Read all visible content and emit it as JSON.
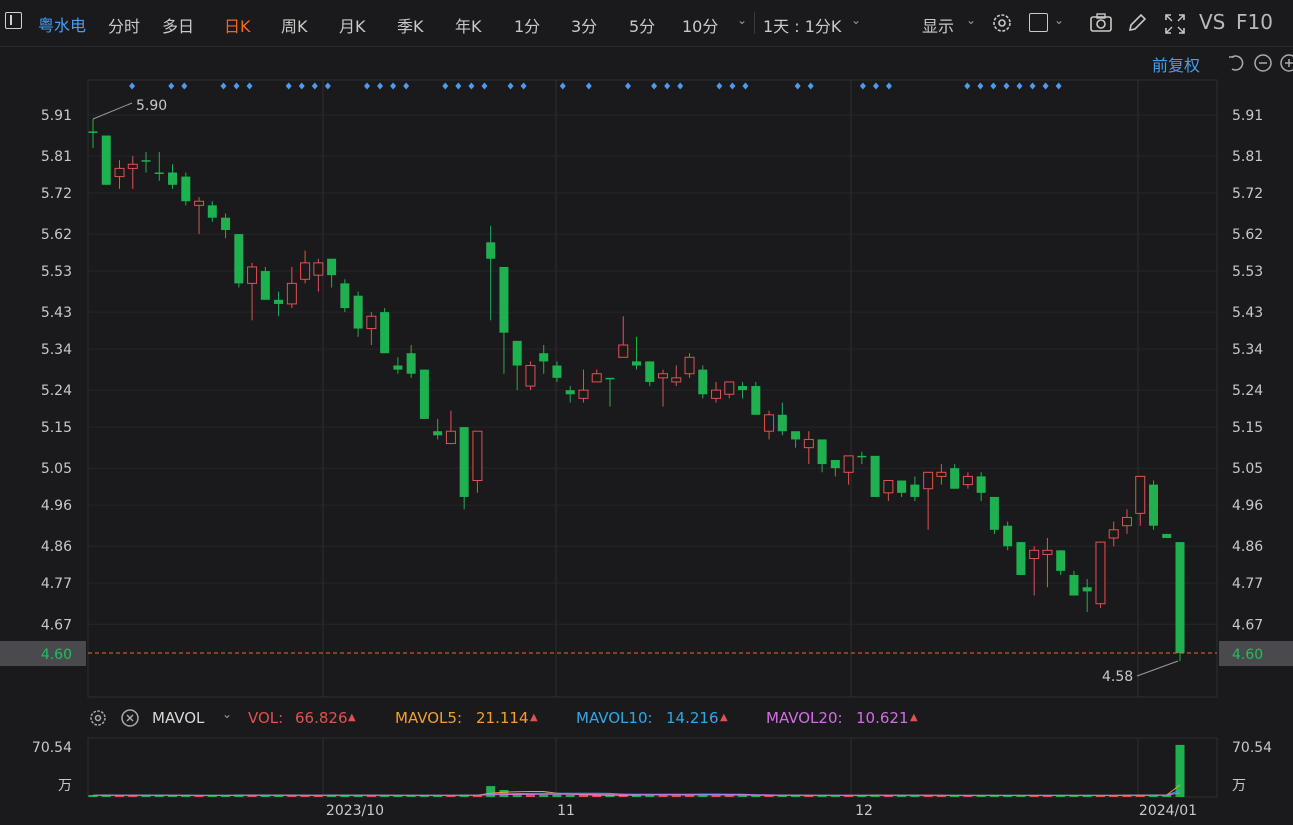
{
  "toolbar": {
    "stock_name": "粤水电",
    "periods": [
      "分时",
      "多日",
      "日K",
      "周K",
      "月K",
      "季K",
      "年K",
      "1分",
      "3分",
      "5分",
      "10分"
    ],
    "active_period": "日K",
    "range_label": "1天 : 1分K",
    "display_label": "显示",
    "vs_label": "VS",
    "f10_label": "F10"
  },
  "chart_header": {
    "adjust_label": "前复权"
  },
  "price_axis": {
    "ticks": [
      "5.91",
      "5.81",
      "5.72",
      "5.62",
      "5.53",
      "5.43",
      "5.34",
      "5.24",
      "5.15",
      "5.05",
      "4.96",
      "4.86",
      "4.77",
      "4.67"
    ],
    "current_price": "4.60",
    "max_label": "5.90",
    "min_label": "4.58"
  },
  "volume_panel": {
    "indicator": "MAVOL",
    "vol_label": "VOL:",
    "vol_value": "66.826",
    "mavol5_label": "MAVOL5:",
    "mavol5_value": "21.114",
    "mavol10_label": "MAVOL10:",
    "mavol10_value": "14.216",
    "mavol20_label": "MAVOL20:",
    "mavol20_value": "10.621",
    "axis_top": "70.54",
    "axis_unit": "万"
  },
  "x_axis": {
    "labels": [
      "2023/10",
      "11",
      "12",
      "2024/01"
    ]
  },
  "colors": {
    "up": "#e0524f",
    "down": "#1fb150",
    "accent": "#f06a20",
    "link": "#4a9cf0"
  },
  "chart_data": {
    "type": "candlestick",
    "ylim": [
      4.58,
      5.92
    ],
    "markers": [
      1,
      4,
      5,
      8,
      9,
      10,
      13,
      14,
      15,
      16,
      19,
      20,
      21,
      22,
      25,
      26,
      27,
      28,
      30,
      31,
      34,
      36,
      39,
      41,
      42,
      43,
      46,
      47,
      48,
      52,
      53,
      57,
      58,
      59,
      65,
      66,
      67,
      68,
      69,
      70,
      71,
      72
    ],
    "candles": [
      {
        "o": 5.87,
        "c": 5.87,
        "h": 5.9,
        "l": 5.83,
        "v": 2
      },
      {
        "o": 5.86,
        "c": 5.74,
        "h": 5.86,
        "l": 5.74,
        "v": 3
      },
      {
        "o": 5.76,
        "c": 5.78,
        "h": 5.8,
        "l": 5.73,
        "v": 2
      },
      {
        "o": 5.78,
        "c": 5.79,
        "h": 5.81,
        "l": 5.73,
        "v": 2
      },
      {
        "o": 5.8,
        "c": 5.8,
        "h": 5.82,
        "l": 5.77,
        "v": 2
      },
      {
        "o": 5.77,
        "c": 5.77,
        "h": 5.82,
        "l": 5.75,
        "v": 2
      },
      {
        "o": 5.77,
        "c": 5.74,
        "h": 5.79,
        "l": 5.73,
        "v": 2
      },
      {
        "o": 5.76,
        "c": 5.7,
        "h": 5.77,
        "l": 5.69,
        "v": 2
      },
      {
        "o": 5.69,
        "c": 5.7,
        "h": 5.71,
        "l": 5.62,
        "v": 2
      },
      {
        "o": 5.69,
        "c": 5.66,
        "h": 5.7,
        "l": 5.65,
        "v": 2
      },
      {
        "o": 5.66,
        "c": 5.63,
        "h": 5.67,
        "l": 5.61,
        "v": 2
      },
      {
        "o": 5.62,
        "c": 5.5,
        "h": 5.62,
        "l": 5.49,
        "v": 3
      },
      {
        "o": 5.5,
        "c": 5.54,
        "h": 5.55,
        "l": 5.41,
        "v": 3
      },
      {
        "o": 5.53,
        "c": 5.46,
        "h": 5.54,
        "l": 5.46,
        "v": 2
      },
      {
        "o": 5.46,
        "c": 5.45,
        "h": 5.48,
        "l": 5.42,
        "v": 2
      },
      {
        "o": 5.45,
        "c": 5.5,
        "h": 5.54,
        "l": 5.44,
        "v": 2
      },
      {
        "o": 5.51,
        "c": 5.55,
        "h": 5.58,
        "l": 5.5,
        "v": 2
      },
      {
        "o": 5.52,
        "c": 5.55,
        "h": 5.56,
        "l": 5.48,
        "v": 2
      },
      {
        "o": 5.56,
        "c": 5.52,
        "h": 5.56,
        "l": 5.49,
        "v": 3
      },
      {
        "o": 5.5,
        "c": 5.44,
        "h": 5.51,
        "l": 5.43,
        "v": 2
      },
      {
        "o": 5.47,
        "c": 5.39,
        "h": 5.48,
        "l": 5.37,
        "v": 2
      },
      {
        "o": 5.39,
        "c": 5.42,
        "h": 5.43,
        "l": 5.35,
        "v": 2
      },
      {
        "o": 5.43,
        "c": 5.33,
        "h": 5.44,
        "l": 5.33,
        "v": 2
      },
      {
        "o": 5.3,
        "c": 5.29,
        "h": 5.32,
        "l": 5.28,
        "v": 2
      },
      {
        "o": 5.33,
        "c": 5.28,
        "h": 5.35,
        "l": 5.27,
        "v": 2
      },
      {
        "o": 5.29,
        "c": 5.17,
        "h": 5.29,
        "l": 5.17,
        "v": 2
      },
      {
        "o": 5.14,
        "c": 5.13,
        "h": 5.17,
        "l": 5.12,
        "v": 2
      },
      {
        "o": 5.11,
        "c": 5.14,
        "h": 5.19,
        "l": 5.11,
        "v": 2
      },
      {
        "o": 5.15,
        "c": 4.98,
        "h": 5.15,
        "l": 4.95,
        "v": 3
      },
      {
        "o": 5.02,
        "c": 5.14,
        "h": 5.14,
        "l": 4.99,
        "v": 3
      },
      {
        "o": 5.6,
        "c": 5.56,
        "h": 5.64,
        "l": 5.41,
        "v": 14
      },
      {
        "o": 5.54,
        "c": 5.38,
        "h": 5.54,
        "l": 5.28,
        "v": 9
      },
      {
        "o": 5.36,
        "c": 5.3,
        "h": 5.36,
        "l": 5.24,
        "v": 5
      },
      {
        "o": 5.25,
        "c": 5.3,
        "h": 5.31,
        "l": 5.24,
        "v": 4
      },
      {
        "o": 5.33,
        "c": 5.31,
        "h": 5.35,
        "l": 5.28,
        "v": 3
      },
      {
        "o": 5.3,
        "c": 5.27,
        "h": 5.31,
        "l": 5.26,
        "v": 3
      },
      {
        "o": 5.24,
        "c": 5.23,
        "h": 5.25,
        "l": 5.21,
        "v": 2
      },
      {
        "o": 5.22,
        "c": 5.24,
        "h": 5.29,
        "l": 5.21,
        "v": 2
      },
      {
        "o": 5.26,
        "c": 5.28,
        "h": 5.29,
        "l": 5.26,
        "v": 2
      },
      {
        "o": 5.27,
        "c": 5.27,
        "h": 5.27,
        "l": 5.2,
        "v": 2
      },
      {
        "o": 5.32,
        "c": 5.35,
        "h": 5.42,
        "l": 5.32,
        "v": 3
      },
      {
        "o": 5.31,
        "c": 5.3,
        "h": 5.37,
        "l": 5.29,
        "v": 3
      },
      {
        "o": 5.31,
        "c": 5.26,
        "h": 5.31,
        "l": 5.25,
        "v": 3
      },
      {
        "o": 5.27,
        "c": 5.28,
        "h": 5.29,
        "l": 5.2,
        "v": 3
      },
      {
        "o": 5.26,
        "c": 5.27,
        "h": 5.3,
        "l": 5.25,
        "v": 2
      },
      {
        "o": 5.28,
        "c": 5.32,
        "h": 5.33,
        "l": 5.27,
        "v": 3
      },
      {
        "o": 5.29,
        "c": 5.23,
        "h": 5.3,
        "l": 5.22,
        "v": 3
      },
      {
        "o": 5.22,
        "c": 5.24,
        "h": 5.26,
        "l": 5.21,
        "v": 2
      },
      {
        "o": 5.23,
        "c": 5.26,
        "h": 5.26,
        "l": 5.22,
        "v": 2
      },
      {
        "o": 5.25,
        "c": 5.24,
        "h": 5.26,
        "l": 5.22,
        "v": 2
      },
      {
        "o": 5.25,
        "c": 5.18,
        "h": 5.26,
        "l": 5.18,
        "v": 2
      },
      {
        "o": 5.14,
        "c": 5.18,
        "h": 5.19,
        "l": 5.12,
        "v": 2
      },
      {
        "o": 5.18,
        "c": 5.14,
        "h": 5.21,
        "l": 5.13,
        "v": 2
      },
      {
        "o": 5.14,
        "c": 5.12,
        "h": 5.14,
        "l": 5.1,
        "v": 2
      },
      {
        "o": 5.1,
        "c": 5.12,
        "h": 5.14,
        "l": 5.06,
        "v": 2
      },
      {
        "o": 5.12,
        "c": 5.06,
        "h": 5.12,
        "l": 5.04,
        "v": 2
      },
      {
        "o": 5.07,
        "c": 5.05,
        "h": 5.07,
        "l": 5.03,
        "v": 2
      },
      {
        "o": 5.04,
        "c": 5.08,
        "h": 5.08,
        "l": 5.01,
        "v": 2
      },
      {
        "o": 5.08,
        "c": 5.08,
        "h": 5.09,
        "l": 5.06,
        "v": 2
      },
      {
        "o": 5.08,
        "c": 4.98,
        "h": 5.08,
        "l": 4.98,
        "v": 3
      },
      {
        "o": 4.99,
        "c": 5.02,
        "h": 5.02,
        "l": 4.97,
        "v": 2
      },
      {
        "o": 5.02,
        "c": 4.99,
        "h": 5.02,
        "l": 4.98,
        "v": 2
      },
      {
        "o": 5.01,
        "c": 4.98,
        "h": 5.03,
        "l": 4.97,
        "v": 2
      },
      {
        "o": 5.0,
        "c": 5.04,
        "h": 5.04,
        "l": 4.9,
        "v": 2
      },
      {
        "o": 5.03,
        "c": 5.04,
        "h": 5.06,
        "l": 5.01,
        "v": 2
      },
      {
        "o": 5.05,
        "c": 5.0,
        "h": 5.06,
        "l": 5.0,
        "v": 2
      },
      {
        "o": 5.01,
        "c": 5.03,
        "h": 5.04,
        "l": 5.0,
        "v": 2
      },
      {
        "o": 5.03,
        "c": 4.99,
        "h": 5.04,
        "l": 4.97,
        "v": 2
      },
      {
        "o": 4.98,
        "c": 4.9,
        "h": 4.98,
        "l": 4.89,
        "v": 2
      },
      {
        "o": 4.91,
        "c": 4.86,
        "h": 4.92,
        "l": 4.85,
        "v": 2
      },
      {
        "o": 4.87,
        "c": 4.79,
        "h": 4.87,
        "l": 4.79,
        "v": 2
      },
      {
        "o": 4.83,
        "c": 4.85,
        "h": 4.86,
        "l": 4.74,
        "v": 2
      },
      {
        "o": 4.84,
        "c": 4.85,
        "h": 4.88,
        "l": 4.76,
        "v": 2
      },
      {
        "o": 4.85,
        "c": 4.8,
        "h": 4.85,
        "l": 4.79,
        "v": 2
      },
      {
        "o": 4.79,
        "c": 4.74,
        "h": 4.8,
        "l": 4.74,
        "v": 2
      },
      {
        "o": 4.76,
        "c": 4.75,
        "h": 4.78,
        "l": 4.7,
        "v": 2
      },
      {
        "o": 4.72,
        "c": 4.87,
        "h": 4.87,
        "l": 4.71,
        "v": 2
      },
      {
        "o": 4.88,
        "c": 4.9,
        "h": 4.92,
        "l": 4.86,
        "v": 2
      },
      {
        "o": 4.91,
        "c": 4.93,
        "h": 4.95,
        "l": 4.89,
        "v": 3
      },
      {
        "o": 4.94,
        "c": 5.03,
        "h": 5.03,
        "l": 4.91,
        "v": 3
      },
      {
        "o": 5.01,
        "c": 4.91,
        "h": 5.02,
        "l": 4.9,
        "v": 3
      },
      {
        "o": 4.89,
        "c": 4.88,
        "h": 4.89,
        "l": 4.88,
        "v": 2
      },
      {
        "o": 4.87,
        "c": 4.6,
        "h": 4.87,
        "l": 4.58,
        "v": 66.8
      }
    ]
  }
}
